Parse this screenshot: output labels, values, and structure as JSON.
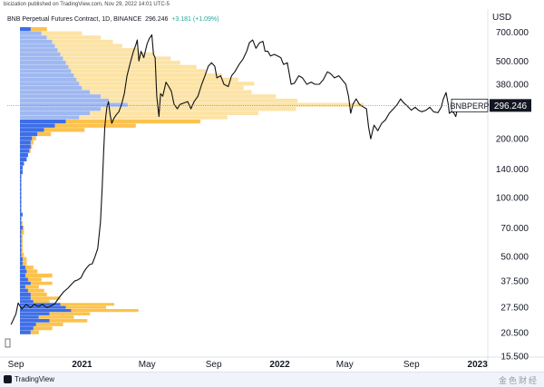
{
  "header": {
    "text": "bicization published on TradingView.com, Nov 29, 2022 14:01 UTC-5"
  },
  "chart_header": {
    "title": "BNB Perpetual Futures Contract, 1D, BINANCE",
    "last": "296.246",
    "change": "+3.181 (+1.09%)"
  },
  "currency": "USD",
  "footer": {
    "brand": "TradingView",
    "watermark": "金色财经"
  },
  "chart_data": {
    "type": "line",
    "symbol": "BNBPERP",
    "last_price": 296.246,
    "y_scale": "log",
    "ylim": [
      15.5,
      760
    ],
    "y_ticks": [
      15.5,
      20.5,
      27.5,
      37.5,
      50,
      70,
      100,
      140,
      200,
      290,
      380,
      500,
      700
    ],
    "y_tick_labels": [
      "15.500",
      "20.500",
      "27.500",
      "37.500",
      "50.000",
      "70.000",
      "100.000",
      "140.000",
      "200.000",
      "290.000",
      "380.000",
      "500.000",
      "700.000"
    ],
    "x_tick_labels": [
      {
        "date": "2020-09-01",
        "label": "Sep"
      },
      {
        "date": "2021-01-01",
        "label": "2021"
      },
      {
        "date": "2021-05-01",
        "label": "May"
      },
      {
        "date": "2021-09-01",
        "label": "Sep"
      },
      {
        "date": "2022-01-01",
        "label": "2022"
      },
      {
        "date": "2022-05-01",
        "label": "May"
      },
      {
        "date": "2022-09-01",
        "label": "Sep"
      },
      {
        "date": "2023-01-01",
        "label": "2023"
      }
    ],
    "price_series": [
      [
        "2020-08-23",
        22.5
      ],
      [
        "2020-09-01",
        25.5
      ],
      [
        "2020-09-05",
        29.0
      ],
      [
        "2020-09-12",
        27.0
      ],
      [
        "2020-09-20",
        28.5
      ],
      [
        "2020-09-28",
        27.5
      ],
      [
        "2020-10-05",
        28.5
      ],
      [
        "2020-10-12",
        27.8
      ],
      [
        "2020-10-20",
        28.5
      ],
      [
        "2020-10-28",
        27.5
      ],
      [
        "2020-11-05",
        28.0
      ],
      [
        "2020-11-12",
        28.8
      ],
      [
        "2020-11-20",
        31.0
      ],
      [
        "2020-11-28",
        33.0
      ],
      [
        "2020-12-06",
        34.5
      ],
      [
        "2020-12-12",
        36.0
      ],
      [
        "2020-12-18",
        37.5
      ],
      [
        "2020-12-24",
        38.0
      ],
      [
        "2020-12-30",
        39.0
      ],
      [
        "2021-01-05",
        42.0
      ],
      [
        "2021-01-10",
        44.0
      ],
      [
        "2021-01-15",
        45.5
      ],
      [
        "2021-01-20",
        46.0
      ],
      [
        "2021-01-25",
        50.0
      ],
      [
        "2021-01-30",
        55.0
      ],
      [
        "2021-02-04",
        75.0
      ],
      [
        "2021-02-07",
        110.0
      ],
      [
        "2021-02-10",
        175.0
      ],
      [
        "2021-02-12",
        230.0
      ],
      [
        "2021-02-14",
        260.0
      ],
      [
        "2021-02-16",
        290.0
      ],
      [
        "2021-02-19",
        310.0
      ],
      [
        "2021-02-22",
        265.0
      ],
      [
        "2021-02-25",
        240.0
      ],
      [
        "2021-03-01",
        255.0
      ],
      [
        "2021-03-05",
        265.0
      ],
      [
        "2021-03-10",
        275.0
      ],
      [
        "2021-03-15",
        300.0
      ],
      [
        "2021-03-20",
        340.0
      ],
      [
        "2021-03-25",
        420.0
      ],
      [
        "2021-04-01",
        500.0
      ],
      [
        "2021-04-06",
        560.0
      ],
      [
        "2021-04-10",
        600.0
      ],
      [
        "2021-04-13",
        640.0
      ],
      [
        "2021-04-16",
        500.0
      ],
      [
        "2021-04-20",
        560.0
      ],
      [
        "2021-04-25",
        520.0
      ],
      [
        "2021-05-01",
        610.0
      ],
      [
        "2021-05-05",
        650.0
      ],
      [
        "2021-05-10",
        680.0
      ],
      [
        "2021-05-13",
        540.0
      ],
      [
        "2021-05-16",
        520.0
      ],
      [
        "2021-05-19",
        330.0
      ],
      [
        "2021-05-23",
        260.0
      ],
      [
        "2021-05-26",
        340.0
      ],
      [
        "2021-05-30",
        330.0
      ],
      [
        "2021-06-05",
        390.0
      ],
      [
        "2021-06-10",
        370.0
      ],
      [
        "2021-06-15",
        350.0
      ],
      [
        "2021-06-20",
        300.0
      ],
      [
        "2021-06-26",
        285.0
      ],
      [
        "2021-07-01",
        300.0
      ],
      [
        "2021-07-08",
        305.0
      ],
      [
        "2021-07-15",
        310.0
      ],
      [
        "2021-07-21",
        285.0
      ],
      [
        "2021-07-27",
        310.0
      ],
      [
        "2021-08-03",
        330.0
      ],
      [
        "2021-08-10",
        380.0
      ],
      [
        "2021-08-16",
        420.0
      ],
      [
        "2021-08-22",
        470.0
      ],
      [
        "2021-08-28",
        490.0
      ],
      [
        "2021-09-03",
        470.0
      ],
      [
        "2021-09-07",
        410.0
      ],
      [
        "2021-09-14",
        420.0
      ],
      [
        "2021-09-20",
        380.0
      ],
      [
        "2021-09-28",
        370.0
      ],
      [
        "2021-10-04",
        420.0
      ],
      [
        "2021-10-10",
        440.0
      ],
      [
        "2021-10-18",
        480.0
      ],
      [
        "2021-10-25",
        510.0
      ],
      [
        "2021-11-01",
        560.0
      ],
      [
        "2021-11-06",
        620.0
      ],
      [
        "2021-11-12",
        640.0
      ],
      [
        "2021-11-18",
        580.0
      ],
      [
        "2021-11-25",
        620.0
      ],
      [
        "2021-12-01",
        630.0
      ],
      [
        "2021-12-05",
        560.0
      ],
      [
        "2021-12-10",
        560.0
      ],
      [
        "2021-12-15",
        530.0
      ],
      [
        "2021-12-22",
        540.0
      ],
      [
        "2021-12-28",
        530.0
      ],
      [
        "2022-01-03",
        520.0
      ],
      [
        "2022-01-08",
        480.0
      ],
      [
        "2022-01-15",
        490.0
      ],
      [
        "2022-01-22",
        380.0
      ],
      [
        "2022-01-28",
        385.0
      ],
      [
        "2022-02-05",
        420.0
      ],
      [
        "2022-02-12",
        410.0
      ],
      [
        "2022-02-20",
        380.0
      ],
      [
        "2022-02-28",
        390.0
      ],
      [
        "2022-03-07",
        380.0
      ],
      [
        "2022-03-15",
        380.0
      ],
      [
        "2022-03-22",
        400.0
      ],
      [
        "2022-03-30",
        440.0
      ],
      [
        "2022-04-05",
        430.0
      ],
      [
        "2022-04-12",
        410.0
      ],
      [
        "2022-04-20",
        420.0
      ],
      [
        "2022-04-28",
        395.0
      ],
      [
        "2022-05-03",
        380.0
      ],
      [
        "2022-05-08",
        330.0
      ],
      [
        "2022-05-12",
        270.0
      ],
      [
        "2022-05-16",
        300.0
      ],
      [
        "2022-05-22",
        320.0
      ],
      [
        "2022-05-28",
        300.0
      ],
      [
        "2022-06-05",
        290.0
      ],
      [
        "2022-06-10",
        285.0
      ],
      [
        "2022-06-14",
        230.0
      ],
      [
        "2022-06-18",
        200.0
      ],
      [
        "2022-06-24",
        235.0
      ],
      [
        "2022-07-01",
        220.0
      ],
      [
        "2022-07-08",
        240.0
      ],
      [
        "2022-07-15",
        250.0
      ],
      [
        "2022-07-22",
        270.0
      ],
      [
        "2022-07-30",
        285.0
      ],
      [
        "2022-08-06",
        300.0
      ],
      [
        "2022-08-12",
        320.0
      ],
      [
        "2022-08-18",
        305.0
      ],
      [
        "2022-08-24",
        295.0
      ],
      [
        "2022-09-01",
        280.0
      ],
      [
        "2022-09-08",
        290.0
      ],
      [
        "2022-09-14",
        280.0
      ],
      [
        "2022-09-20",
        275.0
      ],
      [
        "2022-09-28",
        280.0
      ],
      [
        "2022-10-05",
        290.0
      ],
      [
        "2022-10-12",
        275.0
      ],
      [
        "2022-10-20",
        272.0
      ],
      [
        "2022-10-26",
        290.0
      ],
      [
        "2022-10-30",
        320.0
      ],
      [
        "2022-11-04",
        345.0
      ],
      [
        "2022-11-08",
        300.0
      ],
      [
        "2022-11-10",
        270.0
      ],
      [
        "2022-11-14",
        275.0
      ],
      [
        "2022-11-18",
        272.0
      ],
      [
        "2022-11-22",
        260.0
      ],
      [
        "2022-11-25",
        285.0
      ],
      [
        "2022-11-29",
        296.246
      ]
    ],
    "volume_profile": {
      "colors": {
        "up_volume": "#3d6ee8",
        "down_volume": "#fcc24d",
        "up_volume_va": "#9fb8f1",
        "down_volume_va": "#fce3a6"
      },
      "value_area_low": 250,
      "value_area_high": 720,
      "rows": [
        [
          19.5,
          0.0,
          0.0
        ],
        [
          20.5,
          0.08,
          0.06
        ],
        [
          21.5,
          0.1,
          0.14
        ],
        [
          22.5,
          0.12,
          0.2
        ],
        [
          23.5,
          0.22,
          0.28
        ],
        [
          24.5,
          0.14,
          0.26
        ],
        [
          25.5,
          0.22,
          0.3
        ],
        [
          26.5,
          0.38,
          0.5
        ],
        [
          27.5,
          0.34,
          0.3
        ],
        [
          28.5,
          0.3,
          0.4
        ],
        [
          29.5,
          0.1,
          0.12
        ],
        [
          30.5,
          0.08,
          0.22
        ],
        [
          32.0,
          0.08,
          0.12
        ],
        [
          33.5,
          0.06,
          0.12
        ],
        [
          35.0,
          0.04,
          0.1
        ],
        [
          36.5,
          0.08,
          0.16
        ],
        [
          38.0,
          0.06,
          0.1
        ],
        [
          40.0,
          0.04,
          0.2
        ],
        [
          42.0,
          0.05,
          0.08
        ],
        [
          44.0,
          0.04,
          0.06
        ],
        [
          46.0,
          0.02,
          0.03
        ],
        [
          48.5,
          0.02,
          0.03
        ],
        [
          51.0,
          0.01,
          0.02
        ],
        [
          54.0,
          0.01,
          0.01
        ],
        [
          57.0,
          0.01,
          0.01
        ],
        [
          60.0,
          0.01,
          0.01
        ],
        [
          63.0,
          0.01,
          0.01
        ],
        [
          66.5,
          0.01,
          0.02
        ],
        [
          70.0,
          0.02,
          0.01
        ],
        [
          74.0,
          0.01,
          0.01
        ],
        [
          78.0,
          0.01,
          0.0
        ],
        [
          82.0,
          0.02,
          0.0
        ],
        [
          86.0,
          0.01,
          0.0
        ],
        [
          90.5,
          0.01,
          0.0
        ],
        [
          95.0,
          0.01,
          0.0
        ],
        [
          100.0,
          0.01,
          0.0
        ],
        [
          105.0,
          0.01,
          0.0
        ],
        [
          110.0,
          0.01,
          0.0
        ],
        [
          116.0,
          0.01,
          0.0
        ],
        [
          122.0,
          0.01,
          0.0
        ],
        [
          128.0,
          0.01,
          0.0
        ],
        [
          135.0,
          0.02,
          0.0
        ],
        [
          142.0,
          0.02,
          0.0
        ],
        [
          149.0,
          0.03,
          0.0
        ],
        [
          157.0,
          0.05,
          0.0
        ],
        [
          165.0,
          0.06,
          0.0
        ],
        [
          173.0,
          0.07,
          0.01
        ],
        [
          182.0,
          0.08,
          0.01
        ],
        [
          191.0,
          0.08,
          0.02
        ],
        [
          201.0,
          0.09,
          0.03
        ],
        [
          211.0,
          0.13,
          0.1
        ],
        [
          222.0,
          0.18,
          0.3
        ],
        [
          233.0,
          0.26,
          0.6
        ],
        [
          245.0,
          0.34,
          1.0
        ],
        [
          257.0,
          0.44,
          1.1
        ],
        [
          270.0,
          0.52,
          1.25
        ],
        [
          284.0,
          0.6,
          1.45
        ],
        [
          298.0,
          0.8,
          1.75
        ],
        [
          313.0,
          0.66,
          1.4
        ],
        [
          329.0,
          0.6,
          1.3
        ],
        [
          346.0,
          0.52,
          1.2
        ],
        [
          364.0,
          0.46,
          1.2
        ],
        [
          382.0,
          0.44,
          1.3
        ],
        [
          401.0,
          0.42,
          1.2
        ],
        [
          421.0,
          0.4,
          1.1
        ],
        [
          443.0,
          0.38,
          1.0
        ],
        [
          465.0,
          0.36,
          0.95
        ],
        [
          489.0,
          0.34,
          0.85
        ],
        [
          514.0,
          0.32,
          0.8
        ],
        [
          540.0,
          0.3,
          0.7
        ],
        [
          567.0,
          0.28,
          0.6
        ],
        [
          596.0,
          0.26,
          0.5
        ],
        [
          626.0,
          0.24,
          0.45
        ],
        [
          658.0,
          0.2,
          0.4
        ],
        [
          691.0,
          0.16,
          0.3
        ],
        [
          726.0,
          0.08,
          0.12
        ]
      ]
    }
  }
}
